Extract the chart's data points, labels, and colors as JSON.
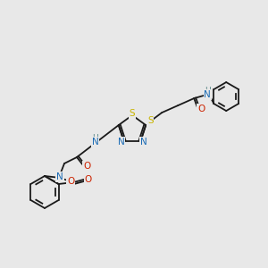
{
  "bg_color": "#e8e8e8",
  "bond_color": "#1a1a1a",
  "atom_colors": {
    "N": "#1a6bb5",
    "O": "#cc2200",
    "S": "#c8b400",
    "H": "#5a8888",
    "C": "#1a1a1a"
  }
}
